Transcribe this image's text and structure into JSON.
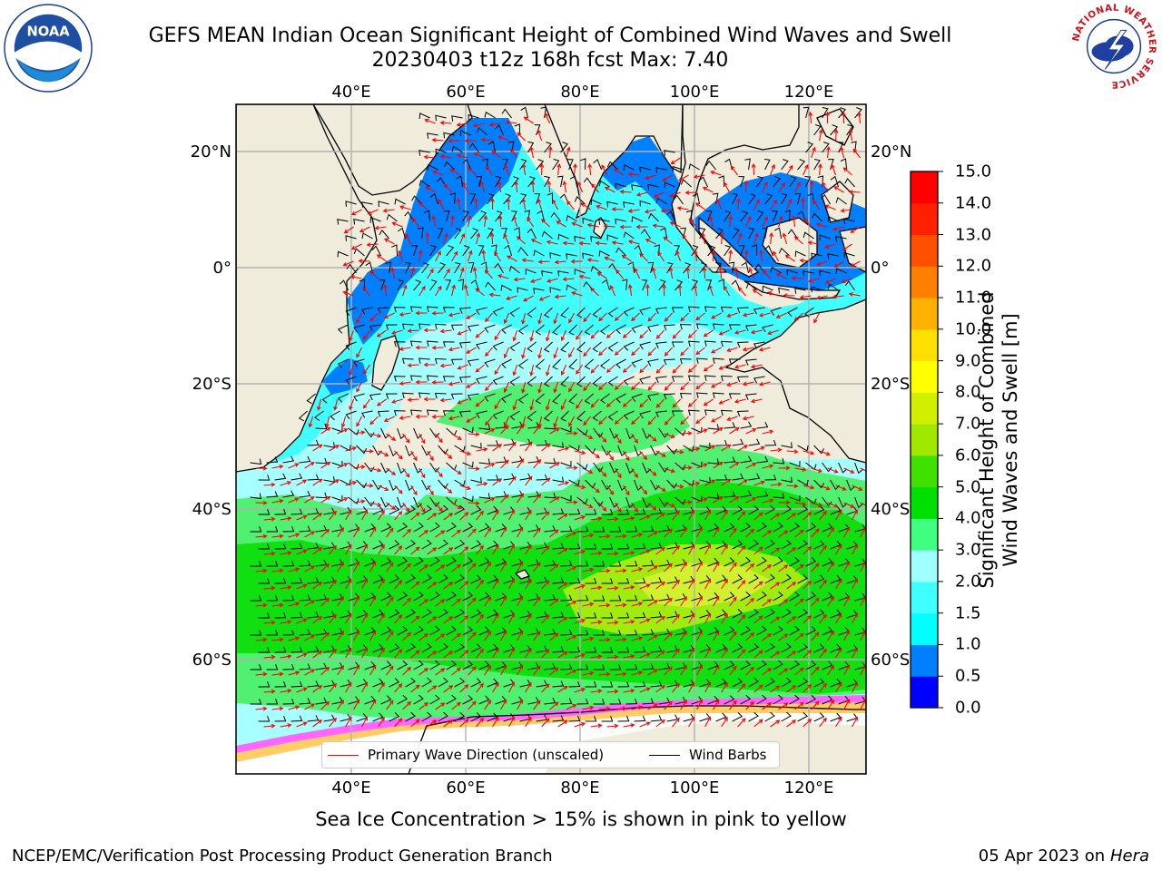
{
  "header": {
    "title_line1": "GEFS MEAN Indian Ocean Significant Height of Combined Wind Waves and Swell",
    "title_line2": "20230403 t12z 168h fcst   Max: 7.40"
  },
  "logos": {
    "left": {
      "name": "noaa-logo",
      "text": "NOAA",
      "ring_text": "NATIONAL OCEANIC AND ATMOSPHERIC ADMINISTRATION · U.S. DEPARTMENT OF COMMERCE"
    },
    "right": {
      "name": "nws-logo",
      "ring_text": "NATIONAL WEATHER SERVICE"
    }
  },
  "map": {
    "lon_range": [
      20,
      130
    ],
    "lat_range": [
      -88,
      28
    ],
    "lon_ticks": [
      {
        "value": 40,
        "label": "40°E"
      },
      {
        "value": 60,
        "label": "60°E"
      },
      {
        "value": 80,
        "label": "80°E"
      },
      {
        "value": 100,
        "label": "100°E"
      },
      {
        "value": 120,
        "label": "120°E"
      }
    ],
    "lat_ticks": [
      {
        "value": 20,
        "label": "20°N"
      },
      {
        "value": 0,
        "label": "0°"
      },
      {
        "value": -20,
        "label": "20°S"
      },
      {
        "value": -40,
        "label": "40°S"
      },
      {
        "value": -60,
        "label": "60°S"
      }
    ],
    "grid": true,
    "colors": {
      "land": "#efecdc",
      "coast": "#000000",
      "wave_direction": "#ff0000",
      "wind_barb": "#000000",
      "sea_ice": [
        "#ff66ff",
        "#ffcc66",
        "#ffff66"
      ]
    }
  },
  "legend": {
    "items": [
      {
        "label": "Primary Wave Direction (unscaled)",
        "color": "#ff0000"
      },
      {
        "label": "Wind Barbs",
        "color": "#000000"
      }
    ]
  },
  "colorbar": {
    "title_line1": "Significant Height of Combined",
    "title_line2": "Wind Waves and Swell [m]",
    "levels": [
      0.0,
      0.5,
      1.0,
      1.5,
      2.0,
      3.0,
      4.0,
      5.0,
      6.0,
      7.0,
      8.0,
      9.0,
      10.0,
      11.0,
      12.0,
      13.0,
      14.0,
      15.0
    ],
    "tick_labels": [
      "0.0",
      "0.5",
      "1.0",
      "1.5",
      "2.0",
      "3.0",
      "4.0",
      "5.0",
      "6.0",
      "7.0",
      "8.0",
      "9.0",
      "10.0",
      "11.0",
      "12.0",
      "13.0",
      "14.0",
      "15.0"
    ],
    "colors": [
      "#0000ff",
      "#0080ff",
      "#00ffff",
      "#40ffff",
      "#a0ffff",
      "#40ff80",
      "#00e000",
      "#40e000",
      "#a0e800",
      "#d0f000",
      "#ffff00",
      "#ffe000",
      "#ffb000",
      "#ff8000",
      "#ff5000",
      "#ff2000",
      "#ff0000"
    ]
  },
  "footer": {
    "ice_note": "Sea Ice Concentration > 15% is shown in pink to yellow",
    "left": "NCEP/EMC/Verification Post Processing Product Generation Branch",
    "date": "05 Apr 2023 on ",
    "host": "Hera"
  }
}
